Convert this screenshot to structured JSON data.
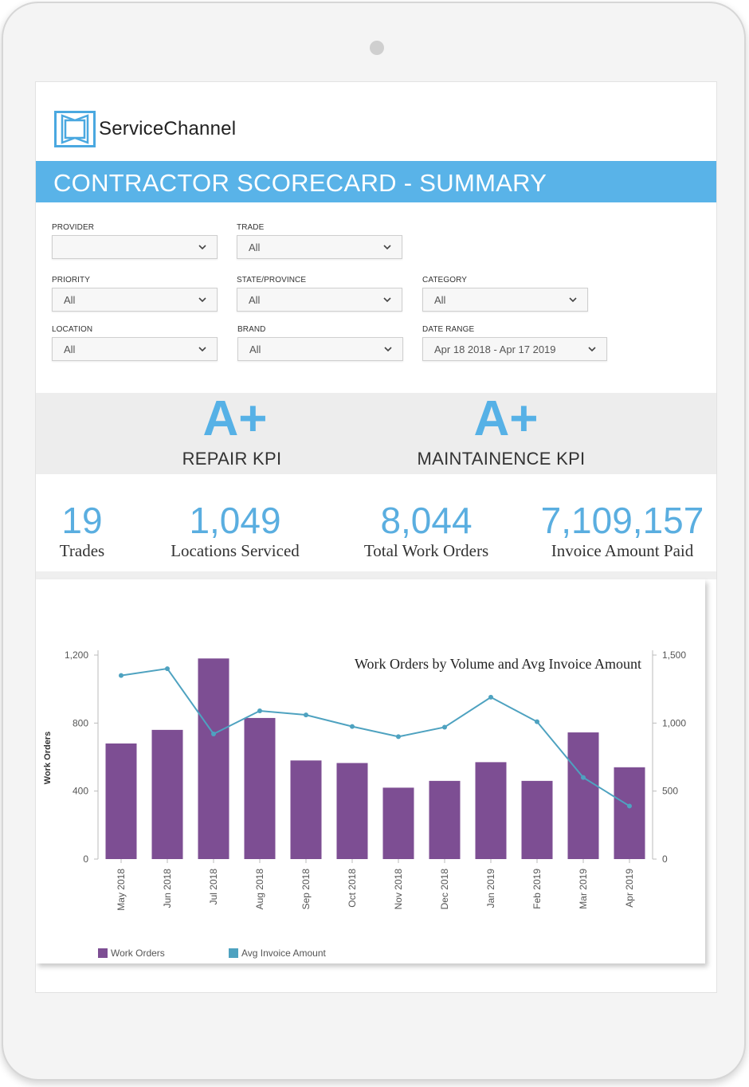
{
  "app": {
    "name": "ServiceChannel",
    "page_title": "CONTRACTOR SCORECARD - SUMMARY"
  },
  "colors": {
    "accent": "#59b3e8",
    "bar": "#7d4e93",
    "line": "#4ea2c0"
  },
  "filters": {
    "provider": {
      "label": "PROVIDER",
      "value": ""
    },
    "trade": {
      "label": "TRADE",
      "value": "All"
    },
    "priority": {
      "label": "PRIORITY",
      "value": "All"
    },
    "state": {
      "label": "STATE/PROVINCE",
      "value": "All"
    },
    "category": {
      "label": "CATEGORY",
      "value": "All"
    },
    "location": {
      "label": "LOCATION",
      "value": "All"
    },
    "brand": {
      "label": "BRAND",
      "value": "All"
    },
    "date_range": {
      "label": "DATE RANGE",
      "value": "Apr 18 2018 - Apr 17 2019"
    }
  },
  "kpis": [
    {
      "grade": "A+",
      "label": "REPAIR KPI"
    },
    {
      "grade": "A+",
      "label": "MAINTAINENCE KPI"
    }
  ],
  "stats": [
    {
      "value": "19",
      "label": "Trades"
    },
    {
      "value": "1,049",
      "label": "Locations Serviced"
    },
    {
      "value": "8,044",
      "label": "Total Work Orders"
    },
    {
      "value": "7,109,157",
      "label": "Invoice Amount Paid"
    }
  ],
  "chart_data": {
    "type": "bar",
    "title": "Work Orders by Volume and Avg Invoice Amount",
    "categories": [
      "May 2018",
      "Jun 2018",
      "Jul 2018",
      "Aug 2018",
      "Sep 2018",
      "Oct 2018",
      "Nov 2018",
      "Dec 2018",
      "Jan 2019",
      "Feb 2019",
      "Mar 2019",
      "Apr 2019"
    ],
    "series": [
      {
        "name": "Work Orders",
        "type": "bar",
        "axis": "left",
        "values": [
          680,
          760,
          1180,
          830,
          580,
          565,
          420,
          460,
          570,
          460,
          745,
          540
        ]
      },
      {
        "name": "Avg Invoice Amount",
        "type": "line",
        "axis": "right",
        "values": [
          1350,
          1400,
          920,
          1090,
          1060,
          975,
          900,
          970,
          1190,
          1010,
          600,
          390
        ]
      }
    ],
    "ylabel": "Work Orders",
    "ylim": [
      0,
      1200
    ],
    "yticks": [
      "0",
      "400",
      "800",
      "1,200"
    ],
    "y2lim": [
      0,
      1500
    ],
    "y2ticks": [
      "0",
      "500",
      "1,000",
      "1,500"
    ],
    "legend": [
      "Work Orders",
      "Avg Invoice Amount"
    ],
    "legend_position": "bottom-left"
  }
}
